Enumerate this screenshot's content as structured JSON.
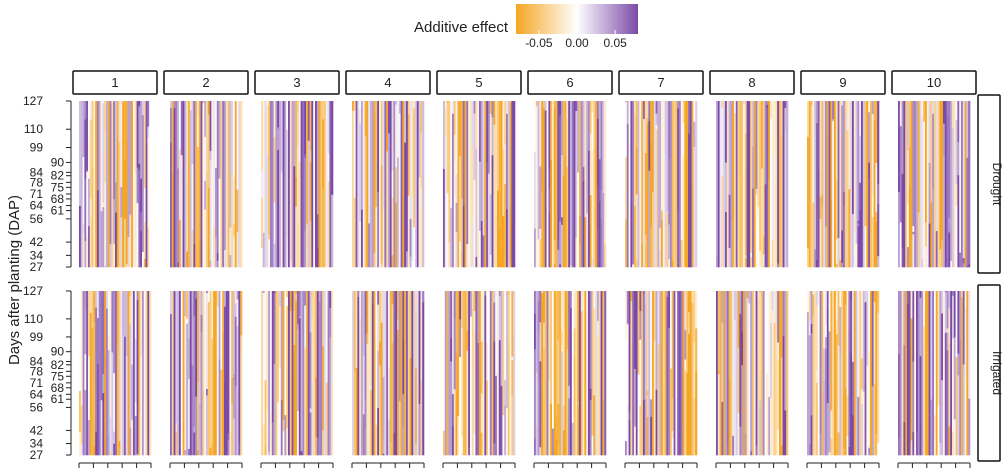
{
  "chart_data": {
    "type": "heatmap",
    "title": "",
    "legend": {
      "title": "Additive effect",
      "placement": "top-center",
      "tick_labels": [
        "-0.05",
        "0.00",
        "0.05"
      ],
      "range": [
        -0.08,
        0.08
      ],
      "colors": {
        "low": "#f5a623",
        "mid": "#ffffff",
        "high": "#7b4aa8"
      }
    },
    "ylabel": "Days after planting (DAP)",
    "y_ticks": [
      127,
      110,
      99,
      90,
      84,
      82,
      78,
      75,
      71,
      68,
      64,
      61,
      56,
      42,
      34,
      27
    ],
    "y_tick_labels_left": [
      "127",
      "110",
      "99",
      "84",
      "78",
      "71",
      "64",
      "56",
      "42",
      "34",
      "27"
    ],
    "y_tick_labels_right": [
      "90",
      "82",
      "75",
      "68",
      "61"
    ],
    "ylim": [
      27,
      127
    ],
    "columns": [
      "1",
      "2",
      "3",
      "4",
      "5",
      "6",
      "7",
      "8",
      "9",
      "10"
    ],
    "rows": [
      "Drought",
      "Irrigated"
    ],
    "x_ticks_per_panel": 6
  }
}
